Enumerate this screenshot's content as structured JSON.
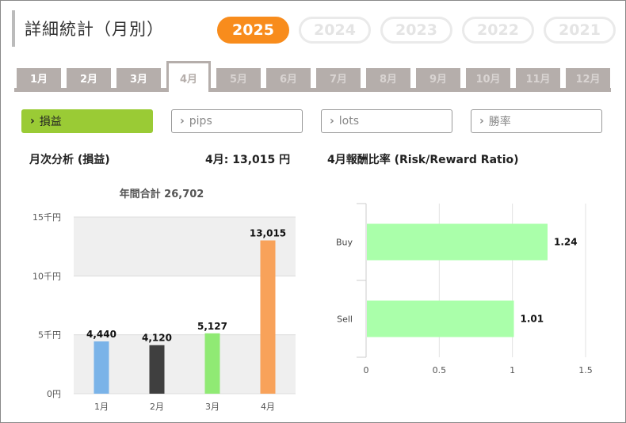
{
  "page": {
    "title": "詳細統計（月別）"
  },
  "years": [
    {
      "label": "2025",
      "active": true
    },
    {
      "label": "2024",
      "active": false
    },
    {
      "label": "2023",
      "active": false
    },
    {
      "label": "2022",
      "active": false
    },
    {
      "label": "2021",
      "active": false
    }
  ],
  "months": [
    "1月",
    "2月",
    "3月",
    "4月",
    "5月",
    "6月",
    "7月",
    "8月",
    "9月",
    "10月",
    "11月",
    "12月"
  ],
  "active_month": "4月",
  "filters": [
    "損益",
    "pips",
    "lots",
    "勝率"
  ],
  "sections": {
    "monthly_title": "月次分析 (損益)",
    "month_total": "4月:  13,015 円",
    "rr_title": "4月報酬比率 (Risk/Reward Ratio)"
  },
  "colors": {
    "accent": "#f88c1c",
    "filter_active": "#9acb35",
    "tab": "#b5aeab"
  },
  "chart_data": [
    {
      "type": "bar",
      "title": "年間合計 26,702",
      "categories": [
        "1月",
        "2月",
        "3月",
        "4月"
      ],
      "values": [
        4440,
        4120,
        5127,
        13015
      ],
      "value_labels": [
        "4,440",
        "4,120",
        "5,127",
        "13,015"
      ],
      "bar_colors": [
        "#7ab3e8",
        "#3f3f3f",
        "#90ea74",
        "#f8a25a"
      ],
      "yticks": [
        0,
        5000,
        10000,
        15000
      ],
      "ytick_labels": [
        "0円",
        "5千円",
        "10千円",
        "15千円"
      ],
      "ylim": [
        0,
        15000
      ],
      "grid": "alternating bands"
    },
    {
      "type": "bar",
      "orientation": "horizontal",
      "title": "4月報酬比率 (Risk/Reward Ratio)",
      "categories": [
        "Buy",
        "Sell"
      ],
      "values": [
        1.24,
        1.01
      ],
      "value_labels": [
        "1.24",
        "1.01"
      ],
      "bar_color": "#aaffaa",
      "xticks": [
        0,
        0.5,
        1,
        1.5
      ],
      "xtick_labels": [
        "0",
        "0.5",
        "1",
        "1.5"
      ],
      "xlim": [
        0,
        1.5
      ]
    }
  ]
}
